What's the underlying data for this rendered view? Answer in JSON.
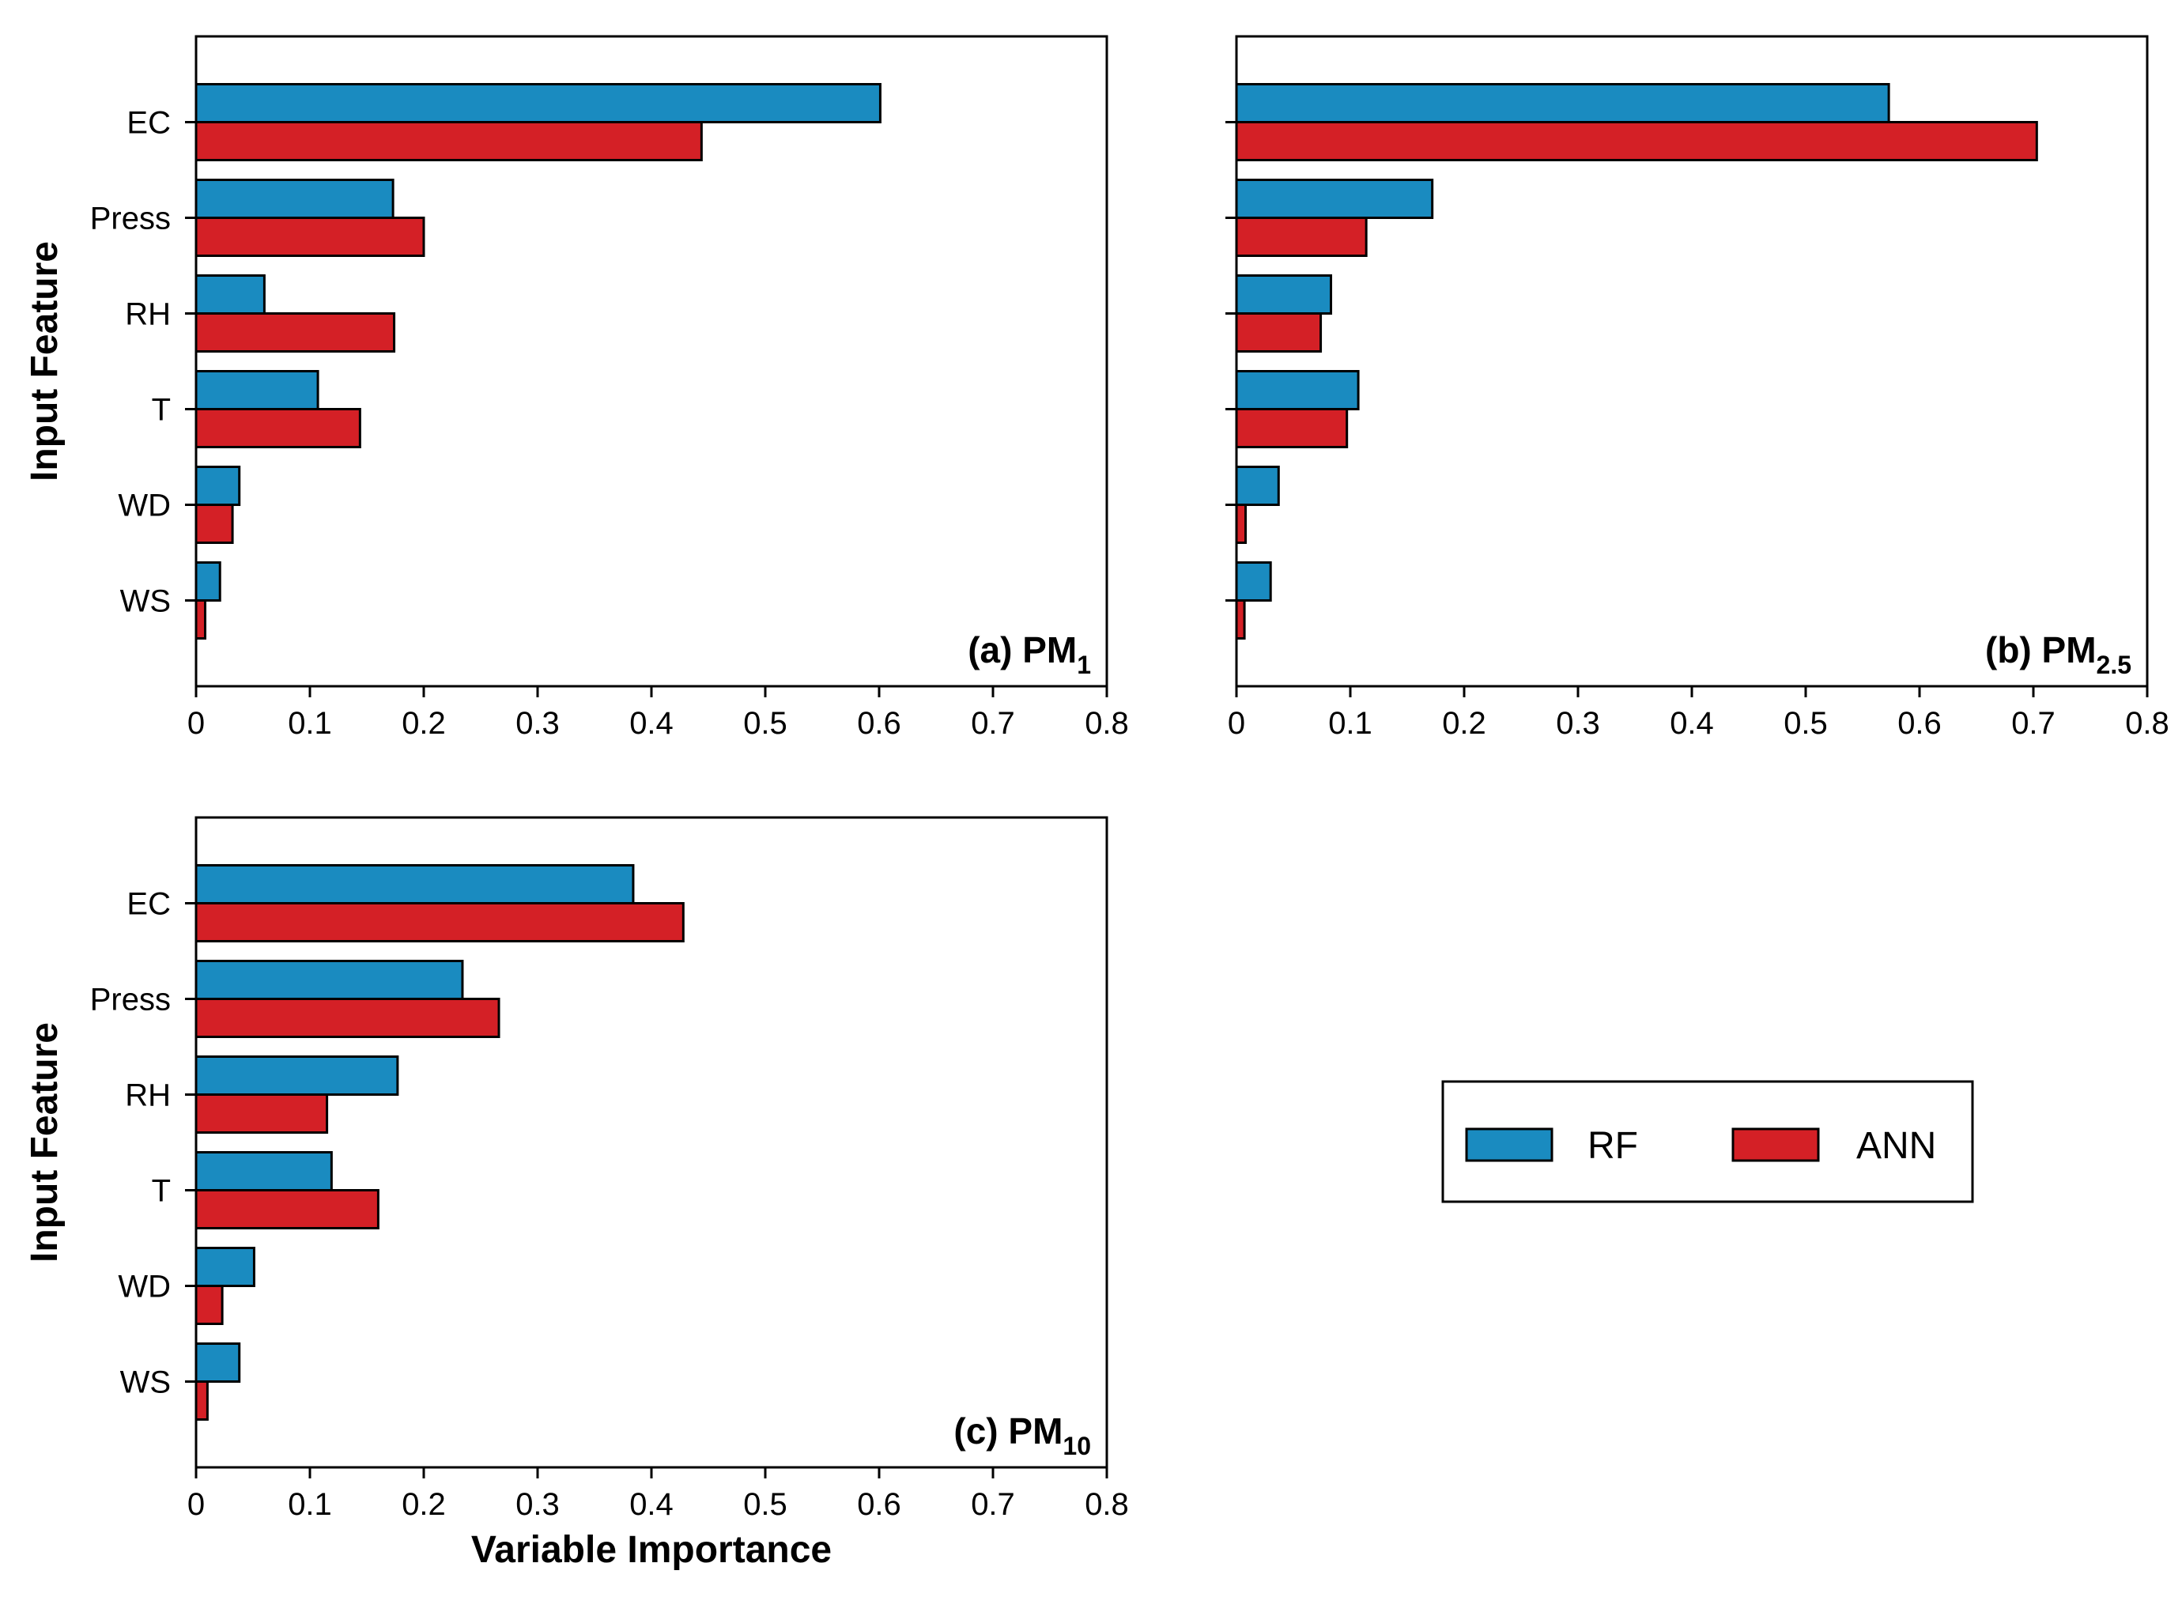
{
  "chart_data": [
    {
      "type": "bar",
      "orientation": "horizontal",
      "panel_prefix": "(a) PM",
      "panel_subscript": "1",
      "categories": [
        "EC",
        "Press",
        "RH",
        "T",
        "WD",
        "WS"
      ],
      "series": [
        {
          "name": "RF",
          "values": [
            0.601,
            0.173,
            0.06,
            0.107,
            0.038,
            0.021
          ]
        },
        {
          "name": "ANN",
          "values": [
            0.444,
            0.2,
            0.174,
            0.144,
            0.032,
            0.008
          ]
        }
      ],
      "xlim": [
        0,
        0.8
      ],
      "xticks": [
        "0",
        "0.1",
        "0.2",
        "0.3",
        "0.4",
        "0.5",
        "0.6",
        "0.7",
        "0.8"
      ],
      "ylabel": "Input Feature",
      "xlabel": ""
    },
    {
      "type": "bar",
      "orientation": "horizontal",
      "panel_prefix": "(b) PM",
      "panel_subscript": "2.5",
      "categories": [
        "EC",
        "Press",
        "RH",
        "T",
        "WD",
        "WS"
      ],
      "series": [
        {
          "name": "RF",
          "values": [
            0.573,
            0.172,
            0.083,
            0.107,
            0.037,
            0.03
          ]
        },
        {
          "name": "ANN",
          "values": [
            0.703,
            0.114,
            0.074,
            0.097,
            0.008,
            0.007
          ]
        }
      ],
      "xlim": [
        0,
        0.8
      ],
      "xticks": [
        "0",
        "0.1",
        "0.2",
        "0.3",
        "0.4",
        "0.5",
        "0.6",
        "0.7",
        "0.8"
      ],
      "ylabel": "",
      "xlabel": ""
    },
    {
      "type": "bar",
      "orientation": "horizontal",
      "panel_prefix": "(c) PM",
      "panel_subscript": "10",
      "categories": [
        "EC",
        "Press",
        "RH",
        "T",
        "WD",
        "WS"
      ],
      "series": [
        {
          "name": "RF",
          "values": [
            0.384,
            0.234,
            0.177,
            0.119,
            0.051,
            0.038
          ]
        },
        {
          "name": "ANN",
          "values": [
            0.428,
            0.266,
            0.115,
            0.16,
            0.023,
            0.01
          ]
        }
      ],
      "xlim": [
        0,
        0.8
      ],
      "xticks": [
        "0",
        "0.1",
        "0.2",
        "0.3",
        "0.4",
        "0.5",
        "0.6",
        "0.7",
        "0.8"
      ],
      "ylabel": "Input Feature",
      "xlabel": "Variable Importance"
    }
  ],
  "legend": {
    "items": [
      {
        "name": "RF",
        "color": "#1a8bc0"
      },
      {
        "name": "ANN",
        "color": "#d42026"
      }
    ]
  },
  "colors": {
    "RF": "#1a8bc0",
    "ANN": "#d42026"
  }
}
